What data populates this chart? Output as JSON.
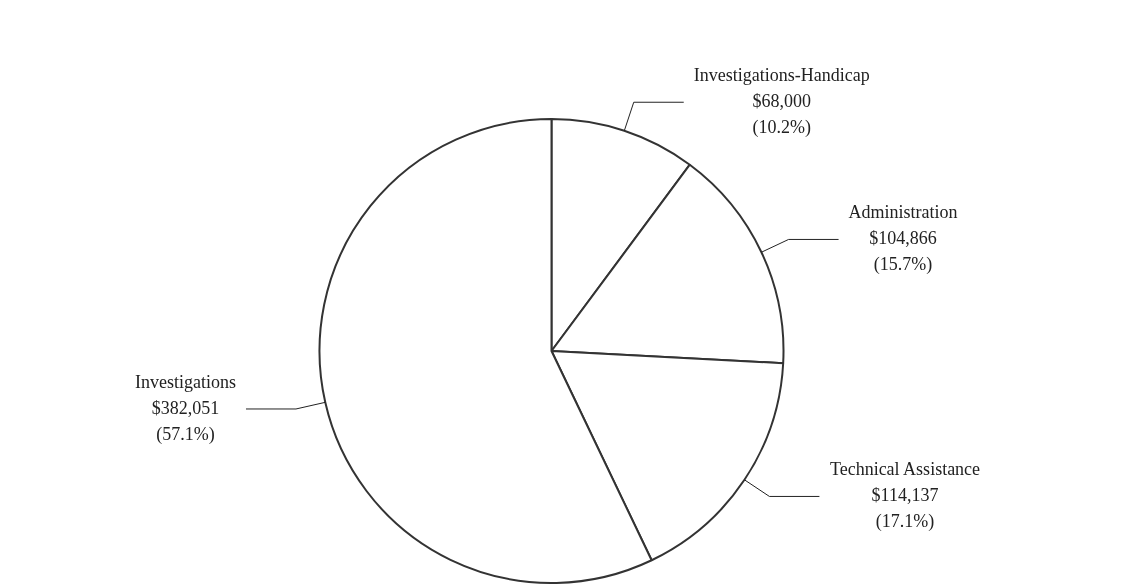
{
  "chart_data": {
    "type": "pie",
    "categories": [
      "Investigations-Handicap",
      "Administration",
      "Technical Assistance",
      "Investigations"
    ],
    "values": [
      68000,
      104866,
      114137,
      382051
    ],
    "colors": [
      "#ffffff",
      "#ffffff",
      "#ffffff",
      "#ffffff"
    ],
    "value_labels": [
      "$68,000\n(10.2%)",
      "$104,866\n(15.7%)",
      "$114,137\n(17.1%)",
      "$382,051\n(57.1%)"
    ],
    "legend": false
  }
}
